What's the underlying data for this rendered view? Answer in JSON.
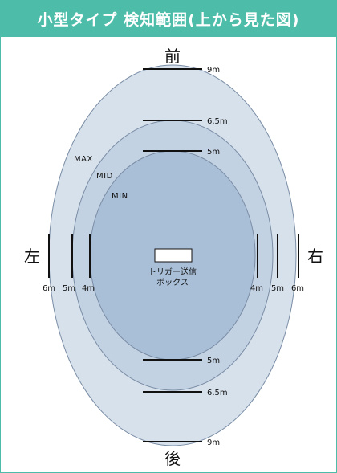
{
  "title": "小型タイプ 検知範囲(上から見た図)",
  "directions": {
    "front": "前",
    "back": "後",
    "left": "左",
    "right": "右"
  },
  "zones": {
    "max": "MAX",
    "mid": "MID",
    "min": "MIN"
  },
  "front_distances": [
    "9m",
    "6.5m",
    "5m"
  ],
  "back_distances": [
    "5m",
    "6.5m",
    "9m"
  ],
  "left_distances": [
    "6m",
    "5m",
    "4m"
  ],
  "right_distances": [
    "4m",
    "5m",
    "6m"
  ],
  "trigger_box": {
    "line1": "トリガー送信",
    "line2": "ボックス"
  },
  "colors": {
    "header": "#4dbdaa",
    "max_fill": "#d7e1ec",
    "mid_fill": "#c3d2e3",
    "min_fill": "#a9bfd7",
    "outline": "#7a8da5"
  }
}
